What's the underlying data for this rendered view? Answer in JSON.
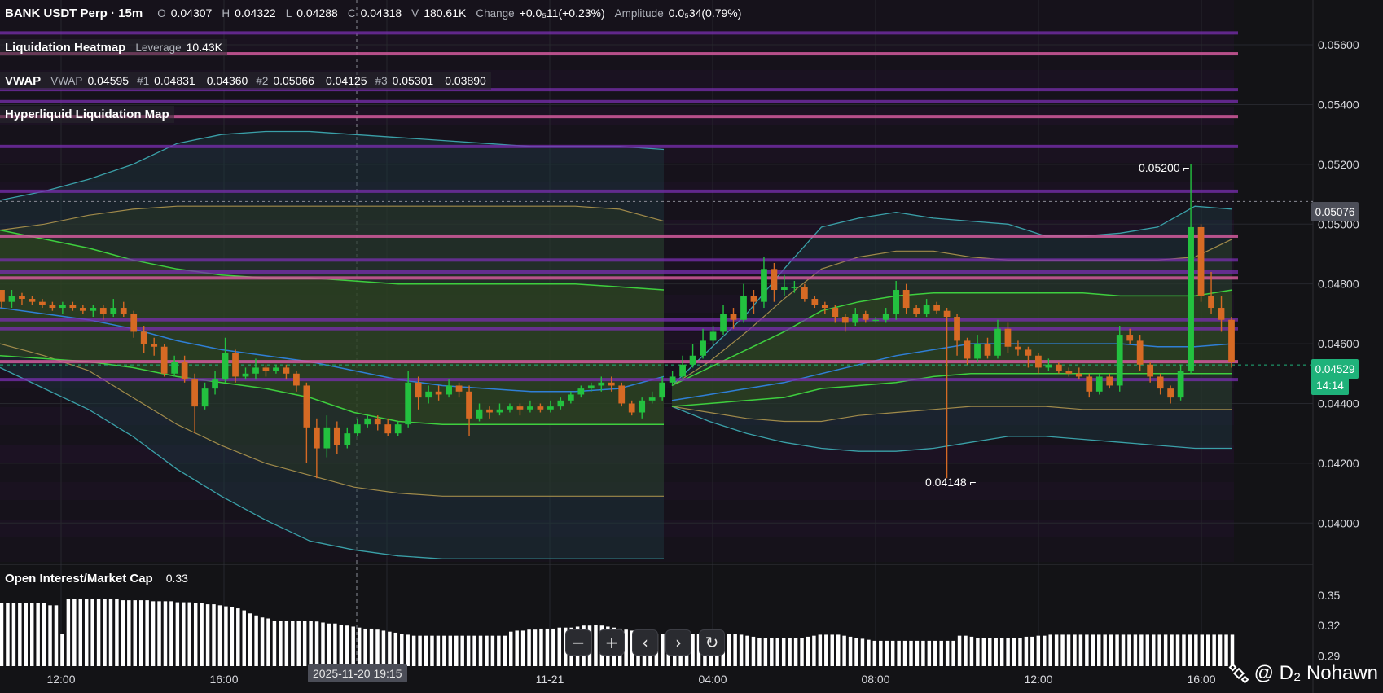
{
  "header": {
    "symbol": "BANK USDT Perp · 15m",
    "open_key": "O",
    "open": "0.04307",
    "high_key": "H",
    "high": "0.04322",
    "low_key": "L",
    "low": "0.04288",
    "close_key": "C",
    "close": "0.04318",
    "vol_key": "V",
    "vol": "180.61K",
    "change_key": "Change",
    "change": "+0.0₅11(+0.23%)",
    "amp_key": "Amplitude",
    "amp": "0.0₅34(0.79%)"
  },
  "liq_heatmap": {
    "title": "Liquidation Heatmap",
    "lev_key": "Leverage",
    "lev": "10.43K"
  },
  "vwap": {
    "title": "VWAP",
    "k0": "VWAP",
    "v0": "0.04595",
    "k1": "#1",
    "v1a": "0.04831",
    "v1b": "0.04360",
    "k2": "#2",
    "v2a": "0.05066",
    "v2b": "0.04125",
    "k3": "#3",
    "v3a": "0.05301",
    "v3b": "0.03890"
  },
  "hl_map": {
    "title": "Hyperliquid Liquidation Map"
  },
  "oi": {
    "title": "Open Interest/Market Cap",
    "value": "0.33"
  },
  "price_axis": [
    "0.05600",
    "0.05400",
    "0.05200",
    "0.05000",
    "0.04800",
    "0.04600",
    "0.04400",
    "0.04200",
    "0.04000"
  ],
  "oi_axis": [
    "0.35",
    "0.32",
    "0.29"
  ],
  "time_axis": [
    "12:00",
    "16:00",
    "11-21",
    "04:00",
    "08:00",
    "12:00",
    "16:00"
  ],
  "crosshair_date": "2025-11-20 19:15",
  "tags": {
    "high_marker": "0.05200",
    "low_marker": "0.04148",
    "price_line": "0.05076",
    "last_price": "0.04529",
    "countdown": "14:14"
  },
  "controls": {
    "zoom_out": "−",
    "zoom_in": "+",
    "scroll_left": "‹",
    "scroll_right": "›",
    "reset": "↻"
  },
  "watermark": {
    "label": "@ D₂ Nohawn"
  },
  "colors": {
    "background": "#131316",
    "bull": "#23c13f",
    "bear": "#d66a24",
    "last_price_tag": "#1fb27a",
    "liquidation_purple": "#7a2fb0",
    "liquidation_pink": "#d25a9c",
    "vwap_band": "#3aa0a8",
    "oi_bar": "#ffffff"
  },
  "chart_data": {
    "type": "candlestick",
    "interval": "15m",
    "price_range": [
      0.0387,
      0.0575
    ],
    "oi_range": [
      0.28,
      0.37
    ],
    "price_axis_ticks": [
      0.056,
      0.054,
      0.052,
      0.05,
      0.048,
      0.046,
      0.044,
      0.042,
      0.04
    ],
    "oi_axis_ticks": [
      0.35,
      0.32,
      0.29
    ],
    "candles": [
      [
        0.0478,
        0.0474,
        0.0477,
        0.0472
      ],
      [
        0.0474,
        0.0476,
        0.0478,
        0.0472
      ],
      [
        0.0476,
        0.0475,
        0.0477,
        0.0473
      ],
      [
        0.0475,
        0.0474,
        0.0476,
        0.0473
      ],
      [
        0.0474,
        0.0473,
        0.0475,
        0.0472
      ],
      [
        0.0473,
        0.0472,
        0.0474,
        0.0471
      ],
      [
        0.0472,
        0.0473,
        0.0474,
        0.047
      ],
      [
        0.0473,
        0.0472,
        0.0474,
        0.0471
      ],
      [
        0.0472,
        0.0471,
        0.0473,
        0.047
      ],
      [
        0.0471,
        0.0472,
        0.0473,
        0.0469
      ],
      [
        0.0472,
        0.047,
        0.0473,
        0.0468
      ],
      [
        0.047,
        0.0472,
        0.0475,
        0.0469
      ],
      [
        0.0472,
        0.047,
        0.0474,
        0.0469
      ],
      [
        0.047,
        0.0464,
        0.0471,
        0.0462
      ],
      [
        0.0464,
        0.046,
        0.0466,
        0.0457
      ],
      [
        0.046,
        0.0459,
        0.0462,
        0.0456
      ],
      [
        0.0459,
        0.045,
        0.046,
        0.0449
      ],
      [
        0.045,
        0.0454,
        0.0456,
        0.0449
      ],
      [
        0.0454,
        0.0448,
        0.0456,
        0.0447
      ],
      [
        0.0448,
        0.0439,
        0.045,
        0.043
      ],
      [
        0.0439,
        0.0445,
        0.0447,
        0.0438
      ],
      [
        0.0445,
        0.0448,
        0.0451,
        0.0443
      ],
      [
        0.0448,
        0.0457,
        0.0462,
        0.0447
      ],
      [
        0.0457,
        0.0449,
        0.0458,
        0.0447
      ],
      [
        0.0449,
        0.045,
        0.0452,
        0.0448
      ],
      [
        0.045,
        0.0452,
        0.0455,
        0.0448
      ],
      [
        0.0452,
        0.0451,
        0.0453,
        0.0449
      ],
      [
        0.0451,
        0.0452,
        0.0453,
        0.045
      ],
      [
        0.0452,
        0.045,
        0.0453,
        0.0448
      ],
      [
        0.045,
        0.0446,
        0.0451,
        0.0444
      ],
      [
        0.0446,
        0.0432,
        0.0447,
        0.042
      ],
      [
        0.0432,
        0.0425,
        0.0435,
        0.0415
      ],
      [
        0.0425,
        0.0432,
        0.0436,
        0.0422
      ],
      [
        0.0432,
        0.0426,
        0.0434,
        0.0423
      ],
      [
        0.0426,
        0.043,
        0.0432,
        0.0425
      ],
      [
        0.043,
        0.0433,
        0.0435,
        0.0429
      ],
      [
        0.0433,
        0.0435,
        0.0436,
        0.0432
      ],
      [
        0.0435,
        0.0433,
        0.0436,
        0.0431
      ],
      [
        0.0433,
        0.043,
        0.0435,
        0.0429
      ],
      [
        0.043,
        0.0433,
        0.0434,
        0.0429
      ],
      [
        0.0433,
        0.0447,
        0.0451,
        0.0432
      ],
      [
        0.0447,
        0.0442,
        0.0449,
        0.0438
      ],
      [
        0.0442,
        0.0444,
        0.0446,
        0.044
      ],
      [
        0.0444,
        0.0443,
        0.0446,
        0.0441
      ],
      [
        0.0443,
        0.0446,
        0.0448,
        0.0442
      ],
      [
        0.0446,
        0.0444,
        0.0447,
        0.0442
      ],
      [
        0.0444,
        0.0435,
        0.0446,
        0.0429
      ],
      [
        0.0435,
        0.0438,
        0.044,
        0.0434
      ],
      [
        0.0438,
        0.0437,
        0.0439,
        0.0435
      ],
      [
        0.0437,
        0.0438,
        0.044,
        0.0436
      ],
      [
        0.0438,
        0.0439,
        0.044,
        0.0437
      ],
      [
        0.0439,
        0.0438,
        0.044,
        0.0436
      ],
      [
        0.0438,
        0.0439,
        0.0441,
        0.0437
      ],
      [
        0.0439,
        0.0438,
        0.044,
        0.0437
      ],
      [
        0.0438,
        0.0439,
        0.0441,
        0.0437
      ],
      [
        0.0439,
        0.0441,
        0.0442,
        0.0438
      ],
      [
        0.0441,
        0.0443,
        0.0444,
        0.044
      ],
      [
        0.0443,
        0.0445,
        0.0446,
        0.0442
      ],
      [
        0.0445,
        0.0446,
        0.0447,
        0.0444
      ],
      [
        0.0446,
        0.0447,
        0.0449,
        0.0444
      ],
      [
        0.0447,
        0.0446,
        0.0449,
        0.0444
      ],
      [
        0.0446,
        0.044,
        0.0447,
        0.0439
      ],
      [
        0.044,
        0.0437,
        0.0441,
        0.0436
      ],
      [
        0.0437,
        0.0441,
        0.0442,
        0.0435
      ],
      [
        0.0441,
        0.0442,
        0.0444,
        0.044
      ],
      [
        0.0442,
        0.0447,
        0.0449,
        0.0441
      ],
      [
        0.0447,
        0.0449,
        0.0451,
        0.0446
      ],
      [
        0.0449,
        0.0453,
        0.0456,
        0.0448
      ],
      [
        0.0453,
        0.0456,
        0.046,
        0.0452
      ],
      [
        0.0456,
        0.0461,
        0.0465,
        0.0455
      ],
      [
        0.0461,
        0.0464,
        0.0466,
        0.046
      ],
      [
        0.0464,
        0.047,
        0.0473,
        0.0463
      ],
      [
        0.047,
        0.0468,
        0.0472,
        0.0465
      ],
      [
        0.0468,
        0.0476,
        0.048,
        0.0467
      ],
      [
        0.0476,
        0.0474,
        0.0478,
        0.047
      ],
      [
        0.0474,
        0.0485,
        0.0489,
        0.0472
      ],
      [
        0.0485,
        0.0478,
        0.0487,
        0.0474
      ],
      [
        0.0478,
        0.0479,
        0.0483,
        0.0476
      ],
      [
        0.0479,
        0.0479,
        0.0481,
        0.0477
      ],
      [
        0.0479,
        0.0475,
        0.048,
        0.0474
      ],
      [
        0.0475,
        0.0473,
        0.0476,
        0.0472
      ],
      [
        0.0473,
        0.0472,
        0.0474,
        0.047
      ],
      [
        0.0472,
        0.0469,
        0.0473,
        0.0467
      ],
      [
        0.0469,
        0.0467,
        0.047,
        0.0464
      ],
      [
        0.0467,
        0.047,
        0.0472,
        0.0466
      ],
      [
        0.047,
        0.0468,
        0.0471,
        0.0467
      ],
      [
        0.0468,
        0.0468,
        0.0469,
        0.0467
      ],
      [
        0.0468,
        0.047,
        0.0472,
        0.0467
      ],
      [
        0.047,
        0.0478,
        0.0481,
        0.0468
      ],
      [
        0.0478,
        0.0472,
        0.048,
        0.047
      ],
      [
        0.0472,
        0.047,
        0.0473,
        0.0469
      ],
      [
        0.047,
        0.0473,
        0.0475,
        0.0469
      ],
      [
        0.0473,
        0.0471,
        0.0474,
        0.047
      ],
      [
        0.0471,
        0.0469,
        0.0472,
        0.0415
      ],
      [
        0.0469,
        0.0461,
        0.047,
        0.0456
      ],
      [
        0.0461,
        0.0455,
        0.0462,
        0.0453
      ],
      [
        0.0455,
        0.046,
        0.0463,
        0.0454
      ],
      [
        0.046,
        0.0456,
        0.0462,
        0.0455
      ],
      [
        0.0456,
        0.0465,
        0.0468,
        0.0455
      ],
      [
        0.0465,
        0.0459,
        0.0467,
        0.0457
      ],
      [
        0.0459,
        0.0458,
        0.0461,
        0.0456
      ],
      [
        0.0458,
        0.0456,
        0.0459,
        0.0452
      ],
      [
        0.0456,
        0.0452,
        0.0457,
        0.045
      ],
      [
        0.0452,
        0.0453,
        0.0455,
        0.0451
      ],
      [
        0.0453,
        0.0451,
        0.0454,
        0.045
      ],
      [
        0.0451,
        0.045,
        0.0452,
        0.0449
      ],
      [
        0.045,
        0.0449,
        0.0452,
        0.0448
      ],
      [
        0.0449,
        0.0444,
        0.045,
        0.0442
      ],
      [
        0.0444,
        0.0449,
        0.045,
        0.0443
      ],
      [
        0.0449,
        0.0446,
        0.045,
        0.0445
      ],
      [
        0.0446,
        0.0463,
        0.0466,
        0.0444
      ],
      [
        0.0463,
        0.0461,
        0.0465,
        0.046
      ],
      [
        0.0461,
        0.0453,
        0.0463,
        0.0451
      ],
      [
        0.0453,
        0.0449,
        0.0454,
        0.0447
      ],
      [
        0.0449,
        0.0445,
        0.045,
        0.0443
      ],
      [
        0.0445,
        0.0442,
        0.0446,
        0.044
      ],
      [
        0.0442,
        0.0451,
        0.0453,
        0.0441
      ],
      [
        0.0451,
        0.0499,
        0.052,
        0.045
      ],
      [
        0.0499,
        0.0476,
        0.05,
        0.0474
      ],
      [
        0.0476,
        0.0472,
        0.0484,
        0.047
      ],
      [
        0.0472,
        0.0468,
        0.0476,
        0.0464
      ],
      [
        0.0468,
        0.0454,
        0.0469,
        0.0452
      ]
    ],
    "vwap_line": [
      [
        0.0472,
        0.047,
        0.0468,
        0.0465,
        0.0461,
        0.0458,
        0.0456,
        0.0454,
        0.0451,
        0.0448,
        0.0446,
        0.0445,
        0.0444,
        0.0444,
        0.0445,
        0.0449
      ],
      [
        0.0441,
        0.0443,
        0.0445,
        0.0447,
        0.045,
        0.0453,
        0.0456,
        0.0458,
        0.046,
        0.046,
        0.046,
        0.046,
        0.046,
        0.0459,
        0.0459,
        0.046
      ]
    ],
    "band_1_upper": [
      [
        0.0498,
        0.0495,
        0.0492,
        0.0488,
        0.0485,
        0.0483,
        0.0482,
        0.0482,
        0.0481,
        0.048,
        0.048,
        0.048,
        0.048,
        0.048,
        0.0479,
        0.0478
      ],
      [
        0.0446,
        0.0452,
        0.0458,
        0.0464,
        0.0471,
        0.0474,
        0.0476,
        0.0477,
        0.0477,
        0.0477,
        0.0477,
        0.0477,
        0.0476,
        0.0476,
        0.0476,
        0.0478
      ]
    ],
    "band_1_lower": [
      [
        0.0456,
        0.0455,
        0.0454,
        0.0452,
        0.0449,
        0.0447,
        0.0445,
        0.0442,
        0.0437,
        0.0434,
        0.0433,
        0.0433,
        0.0433,
        0.0433,
        0.0433,
        0.0433
      ],
      [
        0.0439,
        0.044,
        0.0441,
        0.0442,
        0.0445,
        0.0446,
        0.0447,
        0.0449,
        0.045,
        0.045,
        0.045,
        0.045,
        0.045,
        0.045,
        0.045,
        0.045
      ]
    ],
    "band_2_upper": [
      [
        0.0498,
        0.05,
        0.0503,
        0.0505,
        0.0506,
        0.0506,
        0.0506,
        0.0506,
        0.0506,
        0.0506,
        0.0506,
        0.0506,
        0.0506,
        0.0506,
        0.0505,
        0.0501
      ],
      [
        0.0446,
        0.0454,
        0.0464,
        0.0475,
        0.0485,
        0.0489,
        0.0491,
        0.0491,
        0.0489,
        0.0488,
        0.0488,
        0.0488,
        0.0488,
        0.0488,
        0.0489,
        0.0495
      ]
    ],
    "band_2_lower": [
      [
        0.046,
        0.0456,
        0.0451,
        0.0442,
        0.0433,
        0.0426,
        0.042,
        0.0416,
        0.0412,
        0.041,
        0.0409,
        0.0409,
        0.0409,
        0.0409,
        0.0409,
        0.0409
      ],
      [
        0.0439,
        0.0437,
        0.0435,
        0.0434,
        0.0434,
        0.0436,
        0.0437,
        0.0438,
        0.0439,
        0.0439,
        0.0439,
        0.0438,
        0.0438,
        0.0438,
        0.0438,
        0.0438
      ]
    ],
    "band_3_upper": [
      [
        0.0508,
        0.0511,
        0.0515,
        0.052,
        0.0527,
        0.053,
        0.0531,
        0.0531,
        0.053,
        0.0529,
        0.0528,
        0.0527,
        0.0526,
        0.0526,
        0.0526,
        0.0525
      ],
      [
        0.0446,
        0.0458,
        0.047,
        0.0485,
        0.0499,
        0.0502,
        0.0504,
        0.0502,
        0.0501,
        0.05,
        0.0496,
        0.0496,
        0.0497,
        0.0499,
        0.0506,
        0.0505
      ]
    ],
    "band_3_lower": [
      [
        0.0452,
        0.0445,
        0.0438,
        0.0429,
        0.0418,
        0.0409,
        0.0401,
        0.0394,
        0.0391,
        0.0389,
        0.0388,
        0.0388,
        0.0388,
        0.0388,
        0.0388,
        0.0388
      ],
      [
        0.0439,
        0.0434,
        0.043,
        0.0427,
        0.0425,
        0.0424,
        0.0424,
        0.0425,
        0.0427,
        0.0429,
        0.0429,
        0.0428,
        0.0427,
        0.0426,
        0.0425,
        0.0425
      ]
    ],
    "liquidation_levels": [
      0.0564,
      0.0557,
      0.0545,
      0.0541,
      0.0536,
      0.0526,
      0.0511,
      0.0496,
      0.0488,
      0.0484,
      0.0482,
      0.0468,
      0.0465,
      0.0454,
      0.0448
    ],
    "open_interest_market_cap": [
      0.342,
      0.342,
      0.342,
      0.342,
      0.342,
      0.342,
      0.342,
      0.342,
      0.34,
      0.34,
      0.312,
      0.346,
      0.346,
      0.346,
      0.346,
      0.346,
      0.346,
      0.346,
      0.346,
      0.346,
      0.345,
      0.345,
      0.345,
      0.345,
      0.345,
      0.344,
      0.344,
      0.344,
      0.344,
      0.343,
      0.343,
      0.343,
      0.342,
      0.342,
      0.341,
      0.341,
      0.34,
      0.339,
      0.338,
      0.337,
      0.335,
      0.332,
      0.33,
      0.328,
      0.327,
      0.325,
      0.325,
      0.325,
      0.325,
      0.325,
      0.325,
      0.325,
      0.324,
      0.323,
      0.322,
      0.322,
      0.321,
      0.32,
      0.319,
      0.318,
      0.317,
      0.317,
      0.316,
      0.315,
      0.314,
      0.313,
      0.312,
      0.311,
      0.31,
      0.31,
      0.31,
      0.31,
      0.31,
      0.31,
      0.31,
      0.31,
      0.31,
      0.31,
      0.31,
      0.31,
      0.31,
      0.31,
      0.31,
      0.31,
      0.314,
      0.315,
      0.315,
      0.316,
      0.316,
      0.317,
      0.317,
      0.317,
      0.318,
      0.318,
      0.318,
      0.319,
      0.32,
      0.32,
      0.321,
      0.32,
      0.319,
      0.318,
      0.317,
      0.316,
      0.315,
      0.314,
      0.313,
      0.313,
      0.312,
      0.312,
      0.312,
      0.312,
      0.312,
      0.312,
      0.312,
      0.312,
      0.312,
      0.313,
      0.313,
      0.312,
      0.312,
      0.312,
      0.311,
      0.31,
      0.309,
      0.308,
      0.308,
      0.308,
      0.308,
      0.308,
      0.308,
      0.308,
      0.308,
      0.309,
      0.31,
      0.311,
      0.311,
      0.311,
      0.311,
      0.31,
      0.309,
      0.308,
      0.307,
      0.306,
      0.305,
      0.305,
      0.305,
      0.305,
      0.305,
      0.305,
      0.305,
      0.305,
      0.305,
      0.305,
      0.305,
      0.305,
      0.305,
      0.305,
      0.31,
      0.31,
      0.309,
      0.308,
      0.308,
      0.308,
      0.308,
      0.308,
      0.308,
      0.308,
      0.308,
      0.309,
      0.309,
      0.31,
      0.31,
      0.311,
      0.311,
      0.311,
      0.311,
      0.311,
      0.311,
      0.311,
      0.311,
      0.311,
      0.311,
      0.311,
      0.311,
      0.311,
      0.311,
      0.311,
      0.311,
      0.311,
      0.311,
      0.311,
      0.311,
      0.311,
      0.311,
      0.311,
      0.311,
      0.311,
      0.311,
      0.311,
      0.311,
      0.311,
      0.311,
      0.311
    ]
  }
}
